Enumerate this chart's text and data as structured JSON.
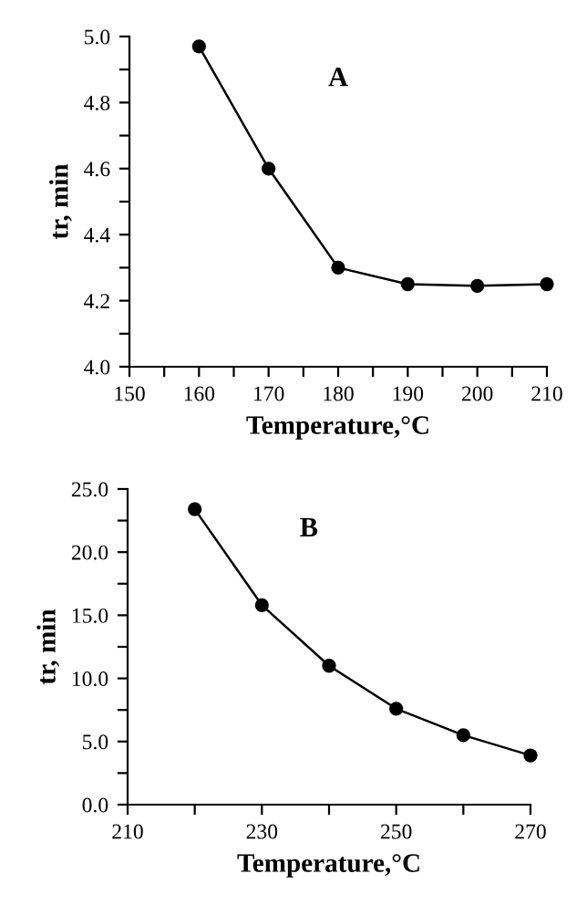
{
  "chart_data": [
    {
      "type": "line",
      "xlabel": "Temperature,°C",
      "ylabel": "tr, min",
      "annotations": [
        "A"
      ],
      "marker": "circle",
      "line_style": "solid",
      "grid": false,
      "x": [
        160,
        170,
        180,
        190,
        200,
        210
      ],
      "series": [
        {
          "color": "#000000",
          "values": [
            4.97,
            4.6,
            4.3,
            4.25,
            4.245,
            4.25
          ]
        }
      ],
      "xlim": [
        150,
        210
      ],
      "ylim": [
        4.0,
        5.0
      ],
      "xticks": [
        150,
        {
          "value": 155,
          "label": null
        },
        160,
        {
          "value": 165,
          "label": null
        },
        170,
        {
          "value": 175,
          "label": null
        },
        180,
        {
          "value": 185,
          "label": null
        },
        190,
        {
          "value": 195,
          "label": null
        },
        200,
        {
          "value": 205,
          "label": null
        },
        210
      ],
      "yticks": [
        {
          "value": 4.0,
          "label": "4.0"
        },
        {
          "value": 4.1,
          "label": null
        },
        {
          "value": 4.2,
          "label": "4.2"
        },
        {
          "value": 4.3,
          "label": null
        },
        {
          "value": 4.4,
          "label": "4.4"
        },
        {
          "value": 4.5,
          "label": null
        },
        {
          "value": 4.6,
          "label": "4.6"
        },
        {
          "value": 4.7,
          "label": null
        },
        {
          "value": 4.8,
          "label": "4.8"
        },
        {
          "value": 4.9,
          "label": null
        },
        {
          "value": 5.0,
          "label": "5.0"
        }
      ]
    },
    {
      "type": "line",
      "xlabel": "Temperature,°C",
      "ylabel": "tr, min",
      "annotations": [
        "B"
      ],
      "marker": "circle",
      "line_style": "solid",
      "grid": false,
      "x": [
        220,
        230,
        240,
        250,
        260,
        270
      ],
      "series": [
        {
          "color": "#000000",
          "values": [
            23.4,
            15.8,
            11.0,
            7.6,
            5.5,
            3.9
          ]
        }
      ],
      "xlim": [
        210,
        270
      ],
      "ylim": [
        0.0,
        25.0
      ],
      "xticks": [
        210,
        {
          "value": 220,
          "label": null
        },
        230,
        {
          "value": 240,
          "label": null
        },
        250,
        {
          "value": 260,
          "label": null
        },
        270
      ],
      "yticks": [
        {
          "value": 0,
          "label": "0.0"
        },
        {
          "value": 2.5,
          "label": null
        },
        {
          "value": 5,
          "label": "5.0"
        },
        {
          "value": 7.5,
          "label": null
        },
        {
          "value": 10,
          "label": "10.0"
        },
        {
          "value": 12.5,
          "label": null
        },
        {
          "value": 15,
          "label": "15.0"
        },
        {
          "value": 17.5,
          "label": null
        },
        {
          "value": 20,
          "label": "20.0"
        },
        {
          "value": 22.5,
          "label": null
        },
        {
          "value": 25,
          "label": "25.0"
        }
      ]
    }
  ]
}
